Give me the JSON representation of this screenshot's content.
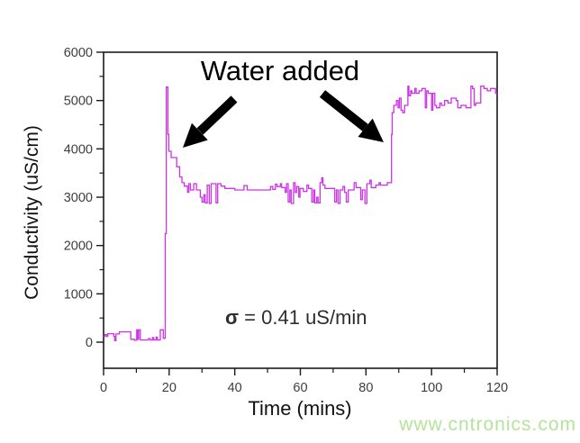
{
  "figure": {
    "watermark": {
      "text": "www.cntronics.com",
      "color": "#b6e39c"
    },
    "annotations": {
      "water_added": "Water added",
      "sigma_symbol": "σ",
      "sigma_rest": " = 0.41 uS/min"
    }
  },
  "chart_data": {
    "type": "line",
    "title": "",
    "xlabel": "Time (mins)",
    "ylabel": "Conductivity (uS/cm)",
    "xlim": [
      0,
      120
    ],
    "ylim": [
      -540,
      6000
    ],
    "xticks": [
      0,
      20,
      40,
      60,
      80,
      100,
      120
    ],
    "yticks": [
      0,
      1000,
      2000,
      3000,
      4000,
      5000,
      6000
    ],
    "x_minor_ticks": [
      10,
      30,
      50,
      70,
      90,
      110
    ],
    "y_minor_ticks": [
      500,
      1500,
      2500,
      3500,
      4500,
      5500
    ],
    "grid": false,
    "legend_position": "none",
    "line_color": "#cc33e6",
    "axis_color": "#1a1a1a",
    "series": [
      {
        "name": "Conductivity",
        "points": [
          [
            0,
            115
          ],
          [
            0.4,
            115
          ],
          [
            0.4,
            155
          ],
          [
            0.9,
            155
          ],
          [
            0.9,
            120
          ],
          [
            1.3,
            120
          ],
          [
            1.3,
            175
          ],
          [
            3.1,
            175
          ],
          [
            3.1,
            120
          ],
          [
            3.4,
            120
          ],
          [
            3.4,
            30
          ],
          [
            3.8,
            30
          ],
          [
            3.8,
            170
          ],
          [
            4.8,
            170
          ],
          [
            4.8,
            215
          ],
          [
            8.3,
            215
          ],
          [
            8.3,
            60
          ],
          [
            9.4,
            60
          ],
          [
            9.4,
            40
          ],
          [
            10.1,
            40
          ],
          [
            10.1,
            255
          ],
          [
            10.4,
            255
          ],
          [
            10.4,
            60
          ],
          [
            10.7,
            60
          ],
          [
            10.7,
            255
          ],
          [
            11.2,
            255
          ],
          [
            11.2,
            45
          ],
          [
            13.7,
            45
          ],
          [
            13.7,
            75
          ],
          [
            14.2,
            75
          ],
          [
            14.2,
            45
          ],
          [
            14.9,
            45
          ],
          [
            14.9,
            95
          ],
          [
            15.3,
            95
          ],
          [
            15.3,
            45
          ],
          [
            16,
            45
          ],
          [
            16,
            105
          ],
          [
            16.4,
            105
          ],
          [
            16.4,
            45
          ],
          [
            17.3,
            45
          ],
          [
            17.3,
            255
          ],
          [
            18.2,
            255
          ],
          [
            18.2,
            80
          ],
          [
            18.8,
            80
          ],
          [
            18.8,
            2250
          ],
          [
            19.1,
            2250
          ],
          [
            19.1,
            5280
          ],
          [
            19.6,
            5280
          ],
          [
            19.6,
            4300
          ],
          [
            19.9,
            4300
          ],
          [
            19.9,
            3950
          ],
          [
            20.6,
            3950
          ],
          [
            20.6,
            3820
          ],
          [
            22.3,
            3820
          ],
          [
            22.3,
            3630
          ],
          [
            23.2,
            3630
          ],
          [
            23.2,
            3420
          ],
          [
            23.9,
            3420
          ],
          [
            23.9,
            3300
          ],
          [
            24.6,
            3300
          ],
          [
            24.6,
            3230
          ],
          [
            25.6,
            3230
          ],
          [
            25.6,
            3100
          ],
          [
            26,
            3100
          ],
          [
            26,
            3280
          ],
          [
            26.5,
            3280
          ],
          [
            26.5,
            3150
          ],
          [
            27.5,
            3150
          ],
          [
            27.5,
            3280
          ],
          [
            28.3,
            3280
          ],
          [
            28.3,
            3150
          ],
          [
            29.5,
            3150
          ],
          [
            29.5,
            3000
          ],
          [
            30,
            3000
          ],
          [
            30,
            2900
          ],
          [
            30.6,
            2900
          ],
          [
            30.6,
            3050
          ],
          [
            31,
            3050
          ],
          [
            31,
            2880
          ],
          [
            31.6,
            2880
          ],
          [
            31.6,
            3250
          ],
          [
            32.2,
            3250
          ],
          [
            32.2,
            2870
          ],
          [
            32.8,
            2870
          ],
          [
            32.8,
            3280
          ],
          [
            34.3,
            3280
          ],
          [
            34.3,
            2880
          ],
          [
            34.8,
            2880
          ],
          [
            34.8,
            3280
          ],
          [
            35.8,
            3280
          ],
          [
            35.8,
            3230
          ],
          [
            37,
            3230
          ],
          [
            37,
            3180
          ],
          [
            40,
            3180
          ],
          [
            40,
            3150
          ],
          [
            42.8,
            3150
          ],
          [
            42.8,
            3240
          ],
          [
            43.8,
            3240
          ],
          [
            43.8,
            3150
          ],
          [
            50.9,
            3150
          ],
          [
            50.9,
            3220
          ],
          [
            51.6,
            3220
          ],
          [
            51.6,
            3160
          ],
          [
            52.4,
            3160
          ],
          [
            52.4,
            3270
          ],
          [
            52.9,
            3270
          ],
          [
            52.9,
            3220
          ],
          [
            53.9,
            3220
          ],
          [
            53.9,
            3280
          ],
          [
            54.3,
            3280
          ],
          [
            54.3,
            3200
          ],
          [
            55.4,
            3200
          ],
          [
            55.4,
            3100
          ],
          [
            55.8,
            3100
          ],
          [
            55.8,
            3280
          ],
          [
            56.3,
            3280
          ],
          [
            56.3,
            2900
          ],
          [
            56.8,
            2900
          ],
          [
            56.8,
            3150
          ],
          [
            57.2,
            3150
          ],
          [
            57.2,
            2870
          ],
          [
            57.9,
            2870
          ],
          [
            57.9,
            3300
          ],
          [
            58.4,
            3300
          ],
          [
            58.4,
            3100
          ],
          [
            58.9,
            3100
          ],
          [
            58.9,
            3220
          ],
          [
            59.5,
            3220
          ],
          [
            59.5,
            3000
          ],
          [
            59.9,
            3000
          ],
          [
            59.9,
            3180
          ],
          [
            60.9,
            3180
          ],
          [
            60.9,
            3120
          ],
          [
            62,
            3120
          ],
          [
            62,
            3250
          ],
          [
            62.5,
            3250
          ],
          [
            62.5,
            3180
          ],
          [
            63.5,
            3180
          ],
          [
            63.5,
            2900
          ],
          [
            64,
            2900
          ],
          [
            64,
            3150
          ],
          [
            64.4,
            3150
          ],
          [
            64.4,
            2880
          ],
          [
            65,
            2880
          ],
          [
            65,
            3000
          ],
          [
            65.4,
            3000
          ],
          [
            65.4,
            2880
          ],
          [
            66,
            2880
          ],
          [
            66,
            3300
          ],
          [
            66.5,
            3300
          ],
          [
            66.5,
            3400
          ],
          [
            66.9,
            3400
          ],
          [
            66.9,
            3250
          ],
          [
            67.5,
            3250
          ],
          [
            67.5,
            3180
          ],
          [
            70.5,
            3180
          ],
          [
            70.5,
            2900
          ],
          [
            71,
            2900
          ],
          [
            71,
            3150
          ],
          [
            71.5,
            3150
          ],
          [
            71.5,
            2870
          ],
          [
            72.1,
            2870
          ],
          [
            72.1,
            3150
          ],
          [
            73,
            3150
          ],
          [
            73,
            3220
          ],
          [
            73.5,
            3220
          ],
          [
            73.5,
            3100
          ],
          [
            74,
            3100
          ],
          [
            74,
            2900
          ],
          [
            74.6,
            2900
          ],
          [
            74.6,
            3150
          ],
          [
            76.4,
            3150
          ],
          [
            76.4,
            3300
          ],
          [
            77,
            3300
          ],
          [
            77,
            3200
          ],
          [
            78.4,
            3200
          ],
          [
            78.4,
            2950
          ],
          [
            78.9,
            2950
          ],
          [
            78.9,
            3150
          ],
          [
            79.7,
            3150
          ],
          [
            79.7,
            2870
          ],
          [
            80.3,
            2870
          ],
          [
            80.3,
            3280
          ],
          [
            81.2,
            3280
          ],
          [
            81.2,
            3350
          ],
          [
            81.6,
            3350
          ],
          [
            81.6,
            3200
          ],
          [
            83,
            3200
          ],
          [
            83,
            3250
          ],
          [
            84,
            3250
          ],
          [
            84,
            3300
          ],
          [
            84.4,
            3300
          ],
          [
            84.4,
            3250
          ],
          [
            86.5,
            3250
          ],
          [
            86.5,
            3300
          ],
          [
            87.8,
            3300
          ],
          [
            87.8,
            4300
          ],
          [
            88,
            4300
          ],
          [
            88,
            4750
          ],
          [
            88.5,
            4750
          ],
          [
            88.5,
            4900
          ],
          [
            89.3,
            4900
          ],
          [
            89.3,
            5000
          ],
          [
            89.8,
            5000
          ],
          [
            89.8,
            4850
          ],
          [
            90.2,
            4850
          ],
          [
            90.2,
            5050
          ],
          [
            90.7,
            5050
          ],
          [
            90.7,
            4800
          ],
          [
            91.2,
            4800
          ],
          [
            91.2,
            4750
          ],
          [
            91.8,
            4750
          ],
          [
            91.8,
            4900
          ],
          [
            92.8,
            4900
          ],
          [
            92.8,
            5300
          ],
          [
            93.1,
            5300
          ],
          [
            93.1,
            5100
          ],
          [
            93.6,
            5100
          ],
          [
            93.6,
            5200
          ],
          [
            94,
            5200
          ],
          [
            94,
            5150
          ],
          [
            94.9,
            5150
          ],
          [
            94.9,
            5250
          ],
          [
            95.3,
            5250
          ],
          [
            95.3,
            5150
          ],
          [
            96.2,
            5150
          ],
          [
            96.2,
            5200
          ],
          [
            97.1,
            5200
          ],
          [
            97.1,
            5250
          ],
          [
            98.1,
            5250
          ],
          [
            98.1,
            4850
          ],
          [
            98.5,
            4850
          ],
          [
            98.5,
            5200
          ],
          [
            99,
            5200
          ],
          [
            99,
            5150
          ],
          [
            100,
            5150
          ],
          [
            100,
            4800
          ],
          [
            100.4,
            4800
          ],
          [
            100.4,
            5150
          ],
          [
            101,
            5150
          ],
          [
            101,
            4900
          ],
          [
            101.5,
            4900
          ],
          [
            101.5,
            4850
          ],
          [
            102.5,
            4850
          ],
          [
            102.5,
            4950
          ],
          [
            103,
            4950
          ],
          [
            103,
            4900
          ],
          [
            104,
            4900
          ],
          [
            104,
            5000
          ],
          [
            105,
            5000
          ],
          [
            105,
            4950
          ],
          [
            106,
            4950
          ],
          [
            106,
            5050
          ],
          [
            107.5,
            5050
          ],
          [
            107.5,
            5000
          ],
          [
            108,
            5000
          ],
          [
            108,
            4850
          ],
          [
            109,
            4850
          ],
          [
            109,
            4900
          ],
          [
            110.5,
            4900
          ],
          [
            110.5,
            4850
          ],
          [
            112,
            4850
          ],
          [
            112,
            5300
          ],
          [
            112.5,
            5300
          ],
          [
            112.5,
            5250
          ],
          [
            113,
            5250
          ],
          [
            113,
            4900
          ],
          [
            113.5,
            4900
          ],
          [
            113.5,
            4950
          ],
          [
            115,
            4950
          ],
          [
            115,
            5300
          ],
          [
            116,
            5300
          ],
          [
            116,
            5250
          ],
          [
            117,
            5250
          ],
          [
            117,
            5200
          ],
          [
            118,
            5200
          ],
          [
            118,
            5250
          ],
          [
            119.5,
            5250
          ],
          [
            119.5,
            5150
          ],
          [
            120,
            5150
          ]
        ]
      }
    ]
  }
}
